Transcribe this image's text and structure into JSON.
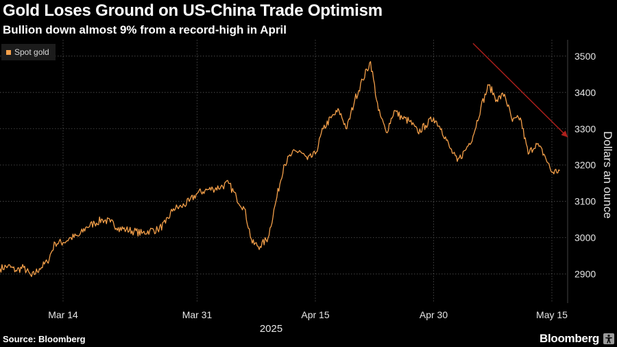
{
  "header": {
    "title": "Gold Loses Ground on US-China Trade Optimism",
    "subtitle": "Bullion down almost 9% from a record-high in April"
  },
  "footer": {
    "source": "Source: Bloomberg",
    "brand": "Bloomberg",
    "brand_icon": "accessibility-icon"
  },
  "chart_data": {
    "type": "line",
    "title": "Gold Loses Ground on US-China Trade Optimism",
    "subtitle": "Bullion down almost 9% from a record-high in April",
    "ylabel": "Dollars an ounce",
    "xlabel": "2025",
    "legend": {
      "placement": "top-left",
      "entries": [
        "Spot gold"
      ]
    },
    "grid": true,
    "ylim": [
      2820,
      3545
    ],
    "xlim": [
      "2025-03-06",
      "2025-05-17"
    ],
    "y_ticks": [
      2900,
      3000,
      3100,
      3200,
      3300,
      3400,
      3500
    ],
    "x_ticks": [
      {
        "date": "2025-03-14",
        "label": "Mar 14"
      },
      {
        "date": "2025-03-31",
        "label": "Mar 31"
      },
      {
        "date": "2025-04-15",
        "label": "Apr 15"
      },
      {
        "date": "2025-04-30",
        "label": "Apr 30"
      },
      {
        "date": "2025-05-15",
        "label": "May 15"
      }
    ],
    "colors": {
      "series": "#f5a04a",
      "trend": "#b0201c",
      "grid": "#555555",
      "axis_text": "#e6e6e6"
    },
    "series": [
      {
        "name": "Spot gold",
        "x": [
          "2025-03-06",
          "2025-03-07",
          "2025-03-08",
          "2025-03-09",
          "2025-03-10",
          "2025-03-11",
          "2025-03-12",
          "2025-03-13",
          "2025-03-14",
          "2025-03-15",
          "2025-03-16",
          "2025-03-17",
          "2025-03-18",
          "2025-03-19",
          "2025-03-20",
          "2025-03-21",
          "2025-03-22",
          "2025-03-23",
          "2025-03-24",
          "2025-03-25",
          "2025-03-26",
          "2025-03-27",
          "2025-03-28",
          "2025-03-29",
          "2025-03-30",
          "2025-03-31",
          "2025-04-01",
          "2025-04-02",
          "2025-04-03",
          "2025-04-04",
          "2025-04-05",
          "2025-04-06",
          "2025-04-07",
          "2025-04-08",
          "2025-04-09",
          "2025-04-10",
          "2025-04-11",
          "2025-04-12",
          "2025-04-13",
          "2025-04-14",
          "2025-04-15",
          "2025-04-16",
          "2025-04-17",
          "2025-04-18",
          "2025-04-19",
          "2025-04-20",
          "2025-04-21",
          "2025-04-22",
          "2025-04-23",
          "2025-04-24",
          "2025-04-25",
          "2025-04-26",
          "2025-04-27",
          "2025-04-28",
          "2025-04-29",
          "2025-04-30",
          "2025-05-01",
          "2025-05-02",
          "2025-05-03",
          "2025-05-04",
          "2025-05-05",
          "2025-05-06",
          "2025-05-07",
          "2025-05-08",
          "2025-05-09",
          "2025-05-10",
          "2025-05-11",
          "2025-05-12",
          "2025-05-13",
          "2025-05-14",
          "2025-05-15",
          "2025-05-16"
        ],
        "values": [
          2915,
          2922,
          2910,
          2918,
          2893,
          2915,
          2933,
          2986,
          2987,
          3000,
          3005,
          3030,
          3040,
          3050,
          3043,
          3028,
          3022,
          3018,
          3012,
          3020,
          3022,
          3040,
          3080,
          3085,
          3100,
          3122,
          3130,
          3135,
          3140,
          3150,
          3110,
          3080,
          2985,
          2976,
          3000,
          3100,
          3200,
          3230,
          3240,
          3215,
          3230,
          3300,
          3330,
          3350,
          3300,
          3380,
          3435,
          3485,
          3350,
          3290,
          3350,
          3330,
          3320,
          3290,
          3310,
          3330,
          3300,
          3250,
          3210,
          3240,
          3280,
          3360,
          3420,
          3380,
          3395,
          3320,
          3330,
          3230,
          3260,
          3230,
          3180,
          3185
        ]
      }
    ],
    "trend_arrow": {
      "from": {
        "date": "2025-05-05",
        "value": 3535
      },
      "to": {
        "date": "2025-05-17",
        "value": 3277
      }
    }
  }
}
